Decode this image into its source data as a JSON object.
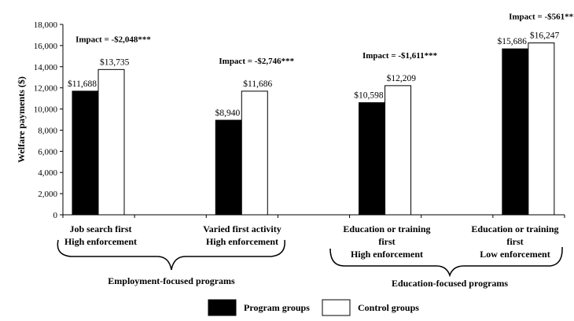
{
  "chart_data": {
    "type": "bar",
    "ylabel": "Welfare payments ($)",
    "ylim": [
      0,
      18000
    ],
    "yticks": [
      "0",
      "2,000",
      "4,000",
      "6,000",
      "8,000",
      "10,000",
      "12,000",
      "14,000",
      "16,000",
      "18,000"
    ],
    "grid": false,
    "legend_placement": "bottom",
    "categories": [
      {
        "lines": [
          "Job search first",
          "High enforcement"
        ],
        "impact": "Impact = -$2,048***"
      },
      {
        "lines": [
          "Varied first activity",
          "High enforcement"
        ],
        "impact": "Impact = -$2,746***"
      },
      {
        "lines": [
          "Education or training",
          "first",
          "High enforcement"
        ],
        "impact": "Impact = -$1,611***"
      },
      {
        "lines": [
          "Education or training",
          "first",
          "Low enforcement"
        ],
        "impact": "Impact = -$561***"
      }
    ],
    "groups": [
      "Employment-focused programs",
      "Education-focused programs"
    ],
    "series": [
      {
        "name": "Program groups",
        "color": "#000000",
        "values": [
          11688,
          8940,
          10598,
          15686
        ],
        "labels": [
          "$11,688",
          "$8,940",
          "$10,598",
          "$15,686"
        ]
      },
      {
        "name": "Control groups",
        "color": "#ffffff",
        "values": [
          13735,
          11686,
          12209,
          16247
        ],
        "labels": [
          "$13,735",
          "$11,686",
          "$12,209",
          "$16,247"
        ]
      }
    ]
  }
}
